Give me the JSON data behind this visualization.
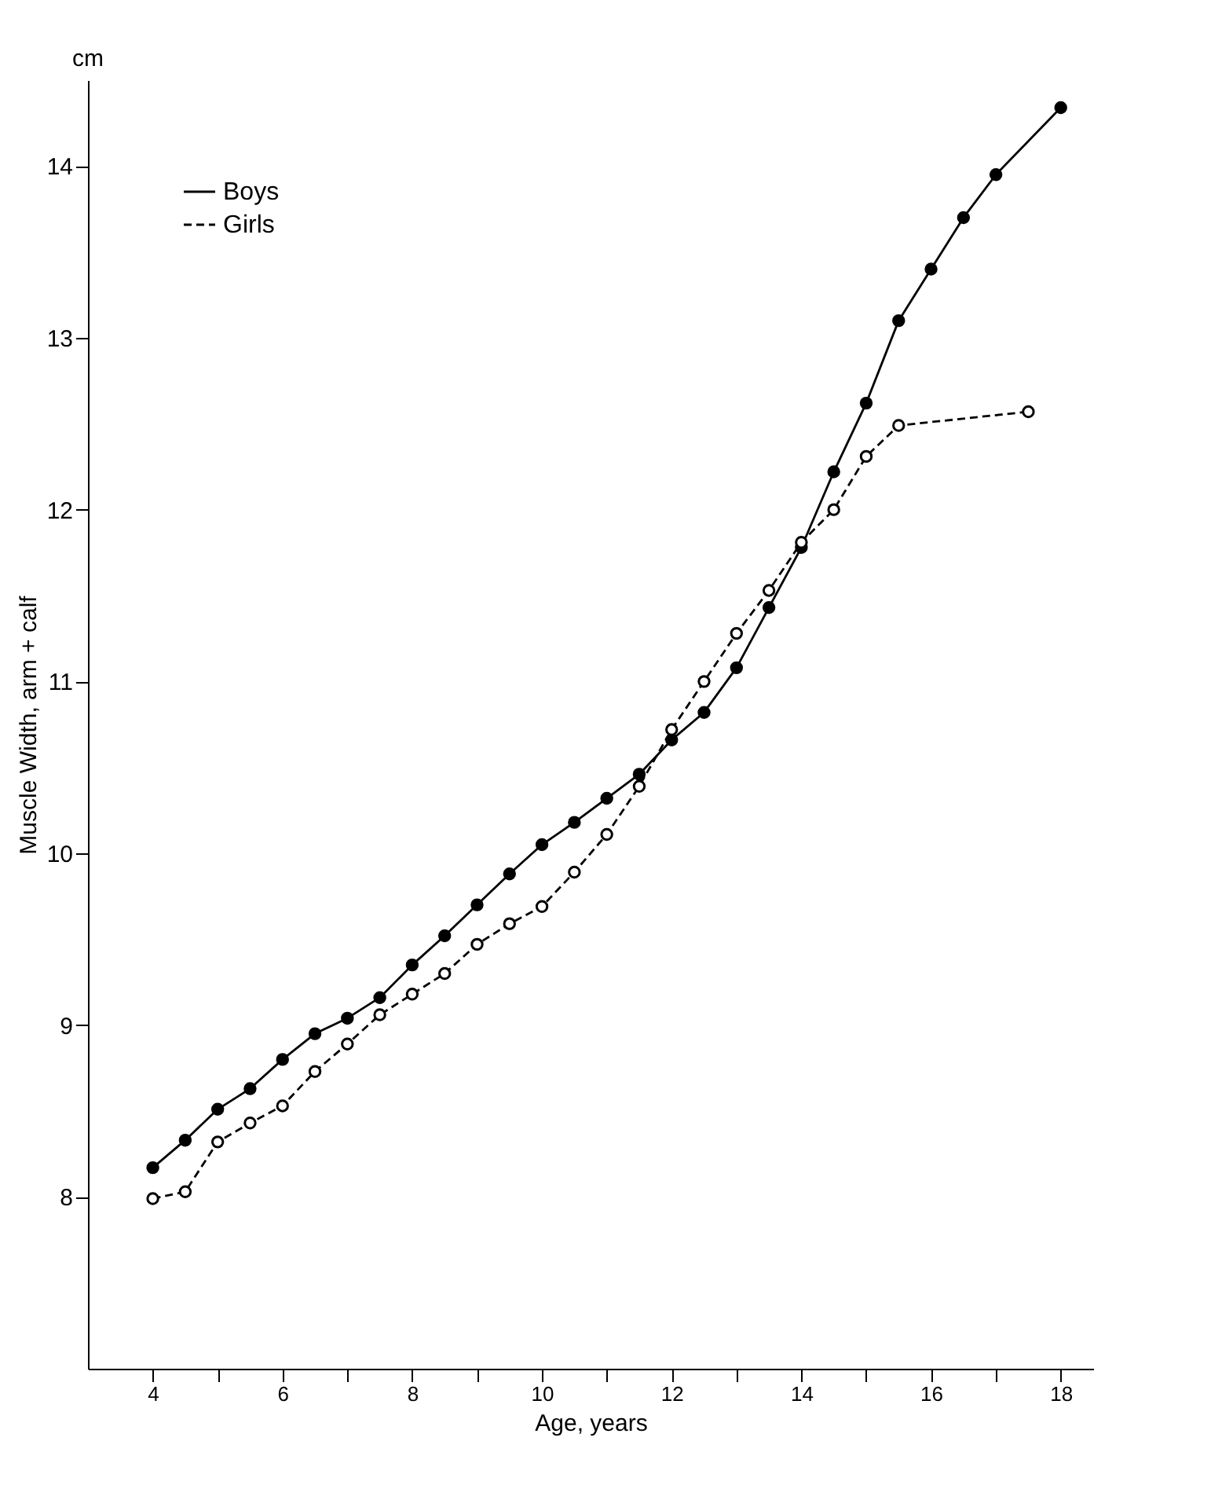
{
  "chart_data": {
    "type": "line",
    "xlabel": "Age, years",
    "ylabel": "Muscle Width, arm + calf",
    "annotations": [
      "cm"
    ],
    "xlim": [
      3,
      18.5
    ],
    "ylim": [
      7,
      14.5
    ],
    "xticks": [
      4,
      {
        "value": 5,
        "label": null
      },
      6,
      {
        "value": 7,
        "label": null
      },
      8,
      {
        "value": 9,
        "label": null
      },
      10,
      {
        "value": 11,
        "label": null
      },
      12,
      {
        "value": 13,
        "label": null
      },
      14,
      {
        "value": 15,
        "label": null
      },
      16,
      {
        "value": 17,
        "label": null
      },
      18
    ],
    "yticks": [
      8,
      9,
      10,
      11,
      12,
      13,
      14
    ],
    "grid": false,
    "legend": "top left",
    "marker": "circle",
    "series": [
      {
        "name": "Boys",
        "color": "#000000",
        "line_style": "solid",
        "x": [
          4,
          4.5,
          5,
          5.5,
          6,
          6.5,
          7,
          7.5,
          8,
          8.5,
          9,
          9.5,
          10,
          10.5,
          11,
          11.5,
          12,
          12.5,
          13,
          13.5,
          14,
          14.5,
          15,
          15.5,
          16,
          16.5,
          17,
          18
        ],
        "values": [
          8.17,
          8.33,
          8.51,
          8.63,
          8.8,
          8.95,
          9.04,
          9.16,
          9.35,
          9.52,
          9.7,
          9.88,
          10.05,
          10.18,
          10.32,
          10.46,
          10.66,
          10.82,
          11.08,
          11.43,
          11.78,
          12.22,
          12.62,
          13.1,
          13.4,
          13.7,
          13.95,
          14.34
        ]
      },
      {
        "name": "Girls",
        "color": "#000000",
        "line_style": "dashed",
        "x": [
          4,
          4.5,
          5,
          5.5,
          6,
          6.5,
          7,
          7.5,
          8,
          8.5,
          9,
          9.5,
          10,
          10.5,
          11,
          11.5,
          12,
          12.5,
          13,
          13.5,
          14,
          14.5,
          15,
          15.5,
          17.5
        ],
        "values": [
          7.99,
          8.03,
          8.32,
          8.43,
          8.53,
          8.73,
          8.89,
          9.06,
          9.18,
          9.3,
          9.47,
          9.59,
          9.69,
          9.89,
          10.11,
          10.39,
          10.72,
          11.0,
          11.28,
          11.53,
          11.81,
          12.0,
          12.31,
          12.49,
          12.57
        ]
      }
    ]
  }
}
